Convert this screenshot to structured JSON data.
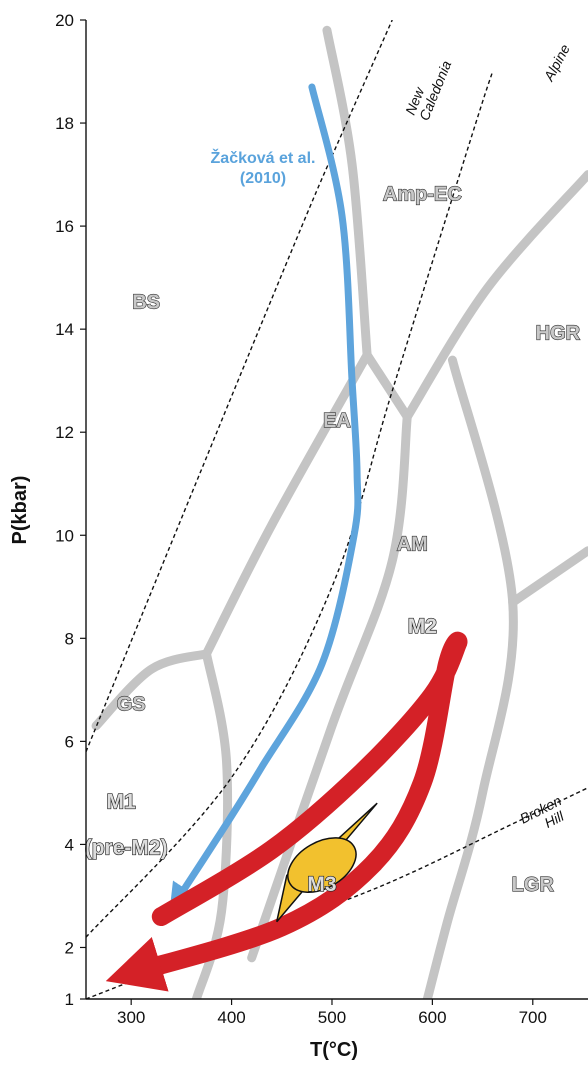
{
  "chart_data": {
    "type": "line",
    "xlabel": "T(°C)",
    "ylabel": "P(kbar)",
    "xlim": [
      255,
      755
    ],
    "ylim": [
      1,
      20
    ],
    "x_ticks": [
      300,
      400,
      500,
      600,
      700
    ],
    "y_ticks": [
      1,
      2,
      4,
      6,
      8,
      10,
      12,
      14,
      16,
      18,
      20
    ],
    "facies_boundaries": [
      {
        "points": [
          [
            495,
            19.8
          ],
          [
            520,
            17.2
          ],
          [
            535,
            13.5
          ]
        ]
      },
      {
        "points": [
          [
            535,
            13.5
          ],
          [
            575,
            12.3
          ]
        ]
      },
      {
        "points": [
          [
            575,
            12.3
          ],
          [
            655,
            14.8
          ],
          [
            755,
            17.0
          ]
        ]
      },
      {
        "points": [
          [
            535,
            13.5
          ],
          [
            440,
            10.2
          ],
          [
            375,
            7.7
          ]
        ]
      },
      {
        "points": [
          [
            265,
            6.3
          ],
          [
            320,
            7.4
          ],
          [
            375,
            7.7
          ]
        ]
      },
      {
        "points": [
          [
            375,
            7.7
          ],
          [
            395,
            5.6
          ],
          [
            390,
            2.7
          ],
          [
            365,
            1
          ]
        ]
      },
      {
        "points": [
          [
            575,
            12.3
          ],
          [
            560,
            9.5
          ],
          [
            500,
            6.3
          ],
          [
            420,
            1.8
          ]
        ]
      },
      {
        "points": [
          [
            620,
            13.4
          ],
          [
            680,
            8.7
          ],
          [
            650,
            5.0
          ],
          [
            615,
            2.5
          ],
          [
            595,
            1
          ]
        ]
      },
      {
        "points": [
          [
            680,
            8.7
          ],
          [
            755,
            9.7
          ]
        ]
      }
    ],
    "series": [
      {
        "name": "Žačková et al. (2010)",
        "color": "#5ea4dc",
        "points": [
          [
            480,
            18.7
          ],
          [
            510,
            16.2
          ],
          [
            520,
            13.0
          ],
          [
            525,
            11.2
          ],
          [
            522,
            10.0
          ],
          [
            490,
            7.5
          ],
          [
            430,
            5.5
          ],
          [
            395,
            4.4
          ],
          [
            345,
            2.9
          ]
        ]
      },
      {
        "name": "M1-M2-M3",
        "color": "#d42127",
        "points": [
          [
            330,
            2.6
          ],
          [
            440,
            3.9
          ],
          [
            530,
            5.4
          ],
          [
            600,
            6.9
          ],
          [
            625,
            7.9
          ],
          [
            615,
            7.5
          ],
          [
            590,
            5.2
          ],
          [
            540,
            3.6
          ],
          [
            450,
            2.4
          ],
          [
            300,
            1.5
          ]
        ]
      }
    ],
    "geotherms": [
      {
        "label": "New Caledonia",
        "points": [
          [
            255,
            5.8
          ],
          [
            360,
            10.8
          ],
          [
            470,
            16.0
          ],
          [
            510,
            17.8
          ],
          [
            560,
            20.0
          ]
        ]
      },
      {
        "label": "Alpine",
        "points": [
          [
            255,
            2.2
          ],
          [
            400,
            5.3
          ],
          [
            500,
            9.0
          ],
          [
            560,
            12.8
          ],
          [
            640,
            17.8
          ],
          [
            660,
            19.0
          ]
        ]
      },
      {
        "label": "Broken Hill",
        "points": [
          [
            255,
            1.0
          ],
          [
            400,
            2.1
          ],
          [
            550,
            3.2
          ],
          [
            680,
            4.4
          ],
          [
            755,
            5.1
          ]
        ]
      }
    ],
    "facies_labels": [
      {
        "text": "BS",
        "x": 315,
        "y": 14.4
      },
      {
        "text": "Amp-EC",
        "x": 590,
        "y": 16.5
      },
      {
        "text": "HGR",
        "x": 725,
        "y": 13.8
      },
      {
        "text": "EA",
        "x": 505,
        "y": 12.1
      },
      {
        "text": "AM",
        "x": 580,
        "y": 9.7
      },
      {
        "text": "GS",
        "x": 300,
        "y": 6.6
      },
      {
        "text": "LGR",
        "x": 700,
        "y": 3.1
      }
    ],
    "event_labels": [
      {
        "text": "M2",
        "x": 590,
        "y": 8.1
      },
      {
        "text": "M1",
        "x": 290,
        "y": 4.7
      },
      {
        "text": "(pre-M2)",
        "x": 295,
        "y": 3.8
      },
      {
        "text": "M3",
        "x": 490,
        "y": 3.1
      }
    ],
    "reference_label": [
      "Žačková et al.",
      "(2010)"
    ],
    "geotherm_labels": {
      "new_caledonia": [
        "New",
        "Caledonia"
      ],
      "alpine": "Alpine",
      "broken_hill": [
        "Broken",
        "Hill"
      ]
    },
    "m3_field": {
      "color": "#f2c12e",
      "points": [
        [
          445,
          2.5
        ],
        [
          545,
          4.8
        ],
        [
          500,
          4.0
        ],
        [
          455,
          3.4
        ]
      ]
    }
  }
}
